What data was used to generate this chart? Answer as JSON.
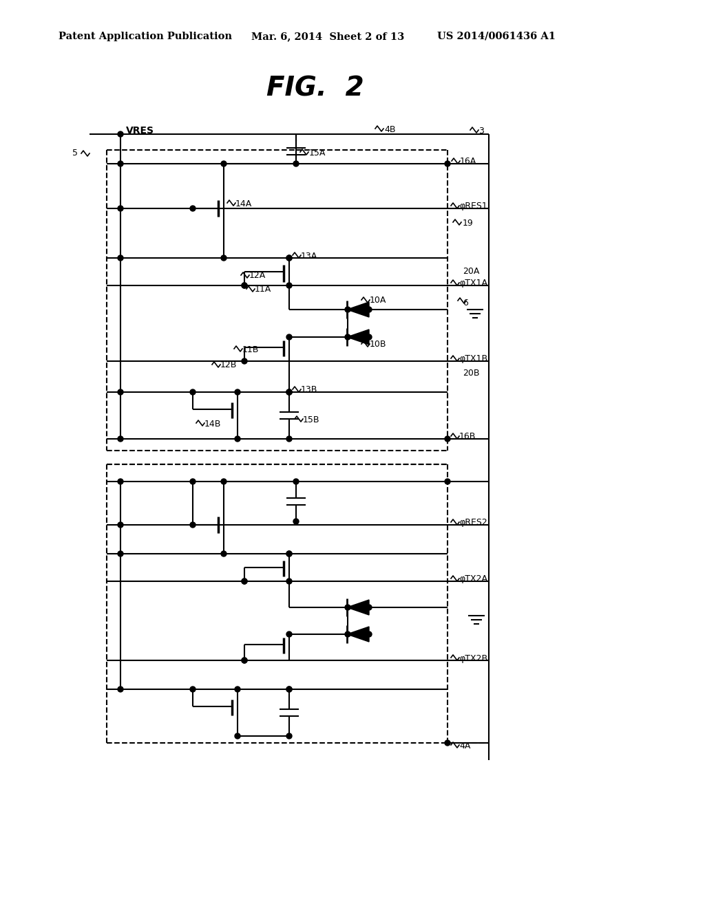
{
  "bg_color": "#ffffff",
  "header_text": "Patent Application Publication",
  "header_date": "Mar. 6, 2014  Sheet 2 of 13",
  "header_patent": "US 2014/0061436 A1",
  "fig_title": "FIG.  2"
}
